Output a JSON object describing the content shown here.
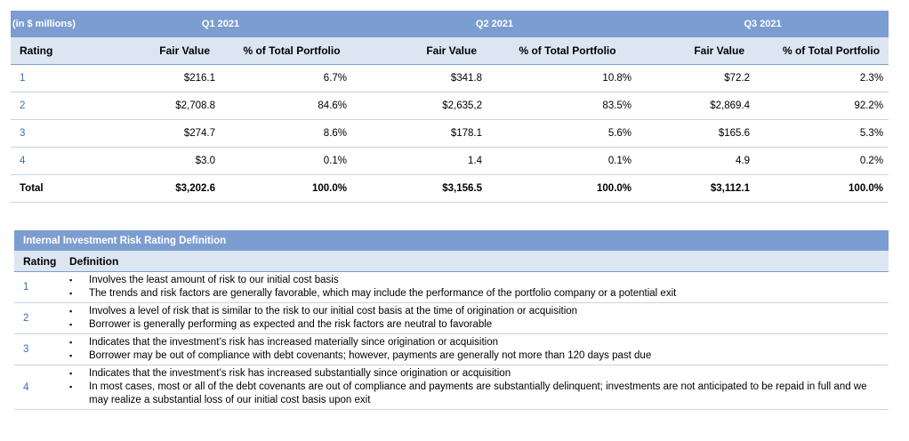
{
  "portfolio_table": {
    "unit_label": "(in $ millions)",
    "quarters": [
      "Q1 2021",
      "Q2 2021",
      "Q3 2021"
    ],
    "col_rating": "Rating",
    "col_fair_value": "Fair Value",
    "col_pct": "% of Total Portfolio",
    "rows": [
      {
        "rating": "1",
        "q1_fv": "$216.1",
        "q1_pct": "6.7%",
        "q2_fv": "$341.8",
        "q2_pct": "10.8%",
        "q3_fv": "$72.2",
        "q3_pct": "2.3%"
      },
      {
        "rating": "2",
        "q1_fv": "$2,708.8",
        "q1_pct": "84.6%",
        "q2_fv": "$2,635,2",
        "q2_pct": "83.5%",
        "q3_fv": "$2,869.4",
        "q3_pct": "92.2%"
      },
      {
        "rating": "3",
        "q1_fv": "$274.7",
        "q1_pct": "8.6%",
        "q2_fv": "$178.1",
        "q2_pct": "5.6%",
        "q3_fv": "$165.6",
        "q3_pct": "5.3%"
      },
      {
        "rating": "4",
        "q1_fv": "$3.0",
        "q1_pct": "0.1%",
        "q2_fv": "1.4",
        "q2_pct": "0.1%",
        "q3_fv": "4.9",
        "q3_pct": "0.2%"
      }
    ],
    "total": {
      "label": "Total",
      "q1_fv": "$3,202.6",
      "q1_pct": "100.0%",
      "q2_fv": "$3,156.5",
      "q2_pct": "100.0%",
      "q3_fv": "$3,112.1",
      "q3_pct": "100.0%"
    }
  },
  "definitions_table": {
    "title": "Internal Investment Risk Rating Definition",
    "col_rating": "Rating",
    "col_definition": "Definition",
    "bullet": "▪",
    "rows": [
      {
        "rating": "1",
        "items": [
          "Involves the least amount of risk to our initial cost basis",
          "The trends and risk factors are generally favorable, which may include the performance of the portfolio company or a potential exit"
        ]
      },
      {
        "rating": "2",
        "items": [
          "Involves a level of risk that is similar to the risk to our initial cost basis at the time of origination or acquisition",
          "Borrower is generally performing as expected and the risk factors are neutral to favorable"
        ]
      },
      {
        "rating": "3",
        "items": [
          "Indicates that the investment’s risk has increased materially since origination or acquisition",
          "Borrower may be out of compliance with debt covenants; however, payments are generally not more than 120 days past due"
        ]
      },
      {
        "rating": "4",
        "items": [
          "Indicates that the investment’s risk has increased substantially since origination or acquisition",
          "In most cases, most or all of the debt covenants are out of compliance and payments are substantially delinquent; investments are not anticipated to be repaid in full and we may realize a substantial loss of our initial cost basis upon exit"
        ]
      }
    ]
  }
}
